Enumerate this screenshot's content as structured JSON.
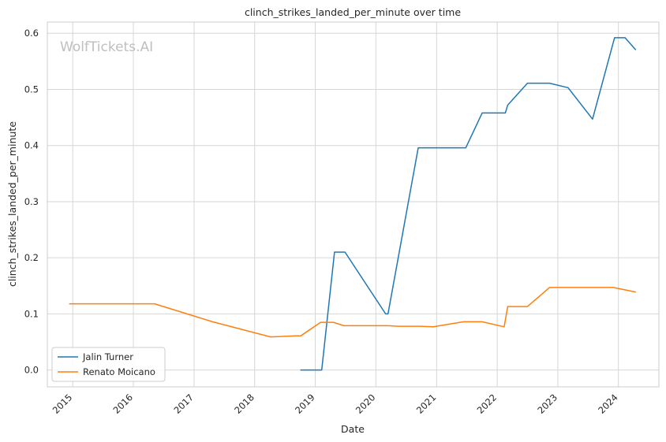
{
  "chart_data": {
    "type": "line",
    "title": "clinch_strikes_landed_per_minute over time",
    "xlabel": "Date",
    "ylabel": "clinch_strikes_landed_per_minute",
    "watermark": "WolfTickets.AI",
    "x_ticks": [
      "2015",
      "2016",
      "2017",
      "2018",
      "2019",
      "2020",
      "2021",
      "2022",
      "2023",
      "2024"
    ],
    "y_ticks": [
      "0.0",
      "0.1",
      "0.2",
      "0.3",
      "0.4",
      "0.5",
      "0.6"
    ],
    "xlim": [
      "2014-08-01",
      "2024-09-01"
    ],
    "ylim": [
      -0.03,
      0.62
    ],
    "grid": true,
    "legend_position": "lower-left",
    "series": [
      {
        "name": "Jalin Turner",
        "color": "#1f77b4",
        "points": [
          [
            "2018-10-06",
            0.0
          ],
          [
            "2019-02-09",
            0.0
          ],
          [
            "2019-04-27",
            0.21
          ],
          [
            "2019-06-29",
            0.21
          ],
          [
            "2020-02-29",
            0.1
          ],
          [
            "2020-03-14",
            0.1
          ],
          [
            "2020-09-12",
            0.396
          ],
          [
            "2021-01-20",
            0.396
          ],
          [
            "2021-06-26",
            0.396
          ],
          [
            "2021-10-02",
            0.458
          ],
          [
            "2022-02-19",
            0.458
          ],
          [
            "2022-03-05",
            0.472
          ],
          [
            "2022-07-02",
            0.511
          ],
          [
            "2022-11-12",
            0.511
          ],
          [
            "2023-03-04",
            0.503
          ],
          [
            "2023-07-29",
            0.447
          ],
          [
            "2023-12-09",
            0.592
          ],
          [
            "2024-02-10",
            0.592
          ],
          [
            "2024-04-13",
            0.571
          ]
        ]
      },
      {
        "name": "Renato Moicano",
        "color": "#ff7f0e",
        "points": [
          [
            "2014-12-13",
            0.118
          ],
          [
            "2015-06-01",
            0.118
          ],
          [
            "2016-05-08",
            0.118
          ],
          [
            "2017-04-22",
            0.086
          ],
          [
            "2018-04-07",
            0.059
          ],
          [
            "2018-09-08",
            0.061
          ],
          [
            "2018-10-06",
            0.061
          ],
          [
            "2019-02-02",
            0.085
          ],
          [
            "2019-04-20",
            0.085
          ],
          [
            "2019-06-22",
            0.079
          ],
          [
            "2020-03-14",
            0.079
          ],
          [
            "2020-05-13",
            0.078
          ],
          [
            "2020-09-19",
            0.078
          ],
          [
            "2020-12-12",
            0.077
          ],
          [
            "2021-06-12",
            0.086
          ],
          [
            "2021-10-02",
            0.086
          ],
          [
            "2022-02-12",
            0.077
          ],
          [
            "2022-03-05",
            0.113
          ],
          [
            "2022-07-02",
            0.113
          ],
          [
            "2022-11-12",
            0.147
          ],
          [
            "2023-12-02",
            0.147
          ],
          [
            "2024-04-13",
            0.139
          ]
        ]
      }
    ]
  }
}
